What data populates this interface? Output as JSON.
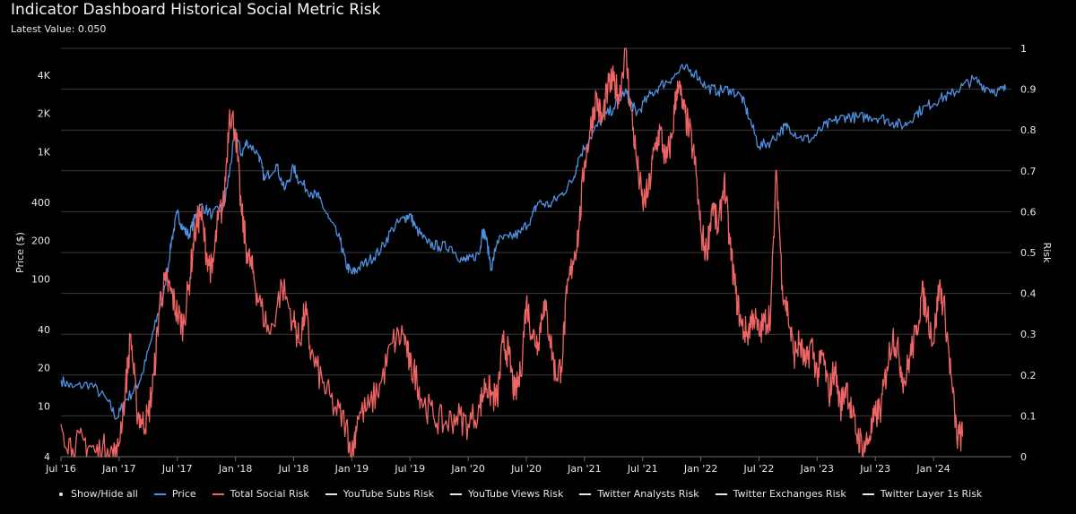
{
  "header": {
    "title": "Indicator Dashboard Historical Social Metric Risk",
    "latest_value_text": "Latest Value: 0.050"
  },
  "legend": {
    "show_hide_label": "Show/Hide all",
    "items": [
      {
        "label": "Price",
        "color": "#4f8fe0"
      },
      {
        "label": "Total Social Risk",
        "color": "#ef6565"
      },
      {
        "label": "YouTube Subs Risk",
        "color": "#e6e6e6"
      },
      {
        "label": "YouTube Views Risk",
        "color": "#e6e6e6"
      },
      {
        "label": "Twitter Analysts Risk",
        "color": "#e6e6e6"
      },
      {
        "label": "Twitter Exchanges Risk",
        "color": "#e6e6e6"
      },
      {
        "label": "Twitter Layer 1s Risk",
        "color": "#e6e6e6"
      }
    ]
  },
  "chart_data": {
    "type": "line",
    "title": "Indicator Dashboard Historical Social Metric Risk",
    "subtitle": "Latest Value: 0.050",
    "xlabel": "",
    "ylabel_left": "Price ($)",
    "ylabel_right": "Risk",
    "x_range": [
      2016.5,
      2024.67
    ],
    "y_left_scale": "log",
    "y_left_range": [
      4,
      6500
    ],
    "y_right_range": [
      0,
      1
    ],
    "grid": true,
    "legend_position": "bottom",
    "x_tick_labels": [
      {
        "t": 2016.5,
        "label": "Jul '16"
      },
      {
        "t": 2017.0,
        "label": "Jan '17"
      },
      {
        "t": 2017.5,
        "label": "Jul '17"
      },
      {
        "t": 2018.0,
        "label": "Jan '18"
      },
      {
        "t": 2018.5,
        "label": "Jul '18"
      },
      {
        "t": 2019.0,
        "label": "Jan '19"
      },
      {
        "t": 2019.5,
        "label": "Jul '19"
      },
      {
        "t": 2020.0,
        "label": "Jan '20"
      },
      {
        "t": 2020.5,
        "label": "Jul '20"
      },
      {
        "t": 2021.0,
        "label": "Jan '21"
      },
      {
        "t": 2021.5,
        "label": "Jul '21"
      },
      {
        "t": 2022.0,
        "label": "Jan '22"
      },
      {
        "t": 2022.5,
        "label": "Jul '22"
      },
      {
        "t": 2023.0,
        "label": "Jan '23"
      },
      {
        "t": 2023.5,
        "label": "Jul '23"
      },
      {
        "t": 2024.0,
        "label": "Jan '24"
      }
    ],
    "y_left_ticks": [
      {
        "v": 4,
        "label": "4"
      },
      {
        "v": 10,
        "label": "10"
      },
      {
        "v": 20,
        "label": "20"
      },
      {
        "v": 40,
        "label": "40"
      },
      {
        "v": 100,
        "label": "100"
      },
      {
        "v": 200,
        "label": "200"
      },
      {
        "v": 400,
        "label": "400"
      },
      {
        "v": 1000,
        "label": "1K"
      },
      {
        "v": 2000,
        "label": "2K"
      },
      {
        "v": 4000,
        "label": "4K"
      }
    ],
    "y_right_ticks": [
      {
        "v": 0,
        "label": "0"
      },
      {
        "v": 0.1,
        "label": "0.1"
      },
      {
        "v": 0.2,
        "label": "0.2"
      },
      {
        "v": 0.3,
        "label": "0.3"
      },
      {
        "v": 0.4,
        "label": "0.4"
      },
      {
        "v": 0.5,
        "label": "0.5"
      },
      {
        "v": 0.6,
        "label": "0.6"
      },
      {
        "v": 0.7,
        "label": "0.7"
      },
      {
        "v": 0.8,
        "label": "0.8"
      },
      {
        "v": 0.9,
        "label": "0.9"
      },
      {
        "v": 1,
        "label": "1"
      }
    ],
    "series": [
      {
        "name": "Price",
        "axis": "left",
        "color": "#4f8fe0",
        "points": [
          [
            2016.5,
            16
          ],
          [
            2016.6,
            14
          ],
          [
            2016.75,
            15
          ],
          [
            2016.9,
            11
          ],
          [
            2016.98,
            8
          ],
          [
            2017.05,
            11
          ],
          [
            2017.15,
            14
          ],
          [
            2017.2,
            18
          ],
          [
            2017.3,
            40
          ],
          [
            2017.4,
            90
          ],
          [
            2017.45,
            200
          ],
          [
            2017.5,
            330
          ],
          [
            2017.55,
            250
          ],
          [
            2017.6,
            220
          ],
          [
            2017.65,
            300
          ],
          [
            2017.7,
            380
          ],
          [
            2017.8,
            320
          ],
          [
            2017.9,
            370
          ],
          [
            2017.95,
            700
          ],
          [
            2018.0,
            1500
          ],
          [
            2018.05,
            950
          ],
          [
            2018.1,
            1200
          ],
          [
            2018.2,
            950
          ],
          [
            2018.25,
            600
          ],
          [
            2018.35,
            800
          ],
          [
            2018.42,
            500
          ],
          [
            2018.5,
            750
          ],
          [
            2018.55,
            580
          ],
          [
            2018.65,
            480
          ],
          [
            2018.72,
            430
          ],
          [
            2018.8,
            300
          ],
          [
            2018.9,
            200
          ],
          [
            2018.95,
            130
          ],
          [
            2019.0,
            110
          ],
          [
            2019.05,
            120
          ],
          [
            2019.15,
            140
          ],
          [
            2019.25,
            170
          ],
          [
            2019.35,
            250
          ],
          [
            2019.45,
            300
          ],
          [
            2019.5,
            320
          ],
          [
            2019.55,
            250
          ],
          [
            2019.65,
            190
          ],
          [
            2019.75,
            180
          ],
          [
            2019.85,
            180
          ],
          [
            2019.95,
            140
          ],
          [
            2020.0,
            140
          ],
          [
            2020.1,
            160
          ],
          [
            2020.12,
            240
          ],
          [
            2020.15,
            220
          ],
          [
            2020.2,
            120
          ],
          [
            2020.25,
            200
          ],
          [
            2020.35,
            210
          ],
          [
            2020.45,
            230
          ],
          [
            2020.55,
            310
          ],
          [
            2020.6,
            400
          ],
          [
            2020.7,
            380
          ],
          [
            2020.8,
            460
          ],
          [
            2020.9,
            600
          ],
          [
            2020.95,
            900
          ],
          [
            2021.05,
            1300
          ],
          [
            2021.15,
            1800
          ],
          [
            2021.25,
            2200
          ],
          [
            2021.35,
            3000
          ],
          [
            2021.4,
            2400
          ],
          [
            2021.45,
            2000
          ],
          [
            2021.55,
            2700
          ],
          [
            2021.65,
            3300
          ],
          [
            2021.75,
            3800
          ],
          [
            2021.85,
            4500
          ],
          [
            2021.95,
            4200
          ],
          [
            2022.05,
            3200
          ],
          [
            2022.15,
            3000
          ],
          [
            2022.25,
            3100
          ],
          [
            2022.35,
            2700
          ],
          [
            2022.42,
            1800
          ],
          [
            2022.5,
            1100
          ],
          [
            2022.6,
            1200
          ],
          [
            2022.7,
            1500
          ],
          [
            2022.75,
            1600
          ],
          [
            2022.85,
            1300
          ],
          [
            2022.95,
            1250
          ],
          [
            2023.05,
            1550
          ],
          [
            2023.15,
            1750
          ],
          [
            2023.25,
            1900
          ],
          [
            2023.35,
            1850
          ],
          [
            2023.45,
            1900
          ],
          [
            2023.55,
            1850
          ],
          [
            2023.65,
            1700
          ],
          [
            2023.75,
            1600
          ],
          [
            2023.85,
            2000
          ],
          [
            2023.95,
            2300
          ],
          [
            2024.05,
            2600
          ],
          [
            2024.15,
            2800
          ],
          [
            2024.25,
            3300
          ],
          [
            2024.35,
            3700
          ],
          [
            2024.45,
            3200
          ],
          [
            2024.55,
            3000
          ],
          [
            2024.62,
            3100
          ]
        ]
      },
      {
        "name": "Total Social Risk",
        "axis": "right",
        "color": "#ef6565",
        "points": [
          [
            2016.5,
            0.08
          ],
          [
            2016.6,
            0.02
          ],
          [
            2016.7,
            0.04
          ],
          [
            2016.8,
            0.01
          ],
          [
            2016.9,
            0.02
          ],
          [
            2016.98,
            0.0
          ],
          [
            2017.05,
            0.15
          ],
          [
            2017.1,
            0.3
          ],
          [
            2017.15,
            0.12
          ],
          [
            2017.2,
            0.08
          ],
          [
            2017.25,
            0.1
          ],
          [
            2017.3,
            0.2
          ],
          [
            2017.35,
            0.38
          ],
          [
            2017.4,
            0.43
          ],
          [
            2017.45,
            0.4
          ],
          [
            2017.5,
            0.35
          ],
          [
            2017.55,
            0.32
          ],
          [
            2017.6,
            0.42
          ],
          [
            2017.65,
            0.55
          ],
          [
            2017.7,
            0.6
          ],
          [
            2017.75,
            0.5
          ],
          [
            2017.8,
            0.45
          ],
          [
            2017.85,
            0.58
          ],
          [
            2017.9,
            0.62
          ],
          [
            2017.95,
            0.85
          ],
          [
            2018.0,
            0.8
          ],
          [
            2018.05,
            0.6
          ],
          [
            2018.1,
            0.5
          ],
          [
            2018.15,
            0.45
          ],
          [
            2018.2,
            0.38
          ],
          [
            2018.3,
            0.3
          ],
          [
            2018.4,
            0.42
          ],
          [
            2018.5,
            0.33
          ],
          [
            2018.55,
            0.28
          ],
          [
            2018.6,
            0.36
          ],
          [
            2018.65,
            0.25
          ],
          [
            2018.75,
            0.18
          ],
          [
            2018.85,
            0.12
          ],
          [
            2018.95,
            0.08
          ],
          [
            2019.0,
            0.0
          ],
          [
            2019.05,
            0.1
          ],
          [
            2019.15,
            0.12
          ],
          [
            2019.25,
            0.18
          ],
          [
            2019.35,
            0.28
          ],
          [
            2019.45,
            0.3
          ],
          [
            2019.5,
            0.22
          ],
          [
            2019.55,
            0.2
          ],
          [
            2019.6,
            0.14
          ],
          [
            2019.7,
            0.1
          ],
          [
            2019.8,
            0.08
          ],
          [
            2019.9,
            0.1
          ],
          [
            2020.0,
            0.08
          ],
          [
            2020.1,
            0.12
          ],
          [
            2020.15,
            0.18
          ],
          [
            2020.2,
            0.15
          ],
          [
            2020.25,
            0.14
          ],
          [
            2020.3,
            0.28
          ],
          [
            2020.35,
            0.25
          ],
          [
            2020.4,
            0.15
          ],
          [
            2020.45,
            0.2
          ],
          [
            2020.5,
            0.38
          ],
          [
            2020.55,
            0.3
          ],
          [
            2020.6,
            0.28
          ],
          [
            2020.65,
            0.38
          ],
          [
            2020.7,
            0.3
          ],
          [
            2020.75,
            0.2
          ],
          [
            2020.8,
            0.22
          ],
          [
            2020.85,
            0.4
          ],
          [
            2020.9,
            0.48
          ],
          [
            2020.95,
            0.55
          ],
          [
            2021.0,
            0.72
          ],
          [
            2021.05,
            0.8
          ],
          [
            2021.1,
            0.88
          ],
          [
            2021.15,
            0.82
          ],
          [
            2021.2,
            0.9
          ],
          [
            2021.25,
            0.92
          ],
          [
            2021.3,
            0.88
          ],
          [
            2021.35,
            1.0
          ],
          [
            2021.4,
            0.85
          ],
          [
            2021.45,
            0.72
          ],
          [
            2021.5,
            0.62
          ],
          [
            2021.55,
            0.65
          ],
          [
            2021.6,
            0.75
          ],
          [
            2021.65,
            0.8
          ],
          [
            2021.7,
            0.72
          ],
          [
            2021.75,
            0.78
          ],
          [
            2021.8,
            0.92
          ],
          [
            2021.85,
            0.85
          ],
          [
            2021.9,
            0.8
          ],
          [
            2021.95,
            0.72
          ],
          [
            2022.0,
            0.55
          ],
          [
            2022.05,
            0.5
          ],
          [
            2022.1,
            0.62
          ],
          [
            2022.15,
            0.55
          ],
          [
            2022.2,
            0.68
          ],
          [
            2022.25,
            0.52
          ],
          [
            2022.3,
            0.4
          ],
          [
            2022.35,
            0.32
          ],
          [
            2022.4,
            0.3
          ],
          [
            2022.45,
            0.35
          ],
          [
            2022.5,
            0.3
          ],
          [
            2022.55,
            0.33
          ],
          [
            2022.6,
            0.35
          ],
          [
            2022.65,
            0.7
          ],
          [
            2022.7,
            0.42
          ],
          [
            2022.75,
            0.35
          ],
          [
            2022.8,
            0.25
          ],
          [
            2022.85,
            0.28
          ],
          [
            2022.9,
            0.22
          ],
          [
            2022.95,
            0.28
          ],
          [
            2023.0,
            0.2
          ],
          [
            2023.05,
            0.25
          ],
          [
            2023.1,
            0.15
          ],
          [
            2023.15,
            0.22
          ],
          [
            2023.2,
            0.12
          ],
          [
            2023.25,
            0.18
          ],
          [
            2023.3,
            0.1
          ],
          [
            2023.35,
            0.05
          ],
          [
            2023.4,
            0.02
          ],
          [
            2023.45,
            0.05
          ],
          [
            2023.5,
            0.1
          ],
          [
            2023.55,
            0.12
          ],
          [
            2023.6,
            0.22
          ],
          [
            2023.65,
            0.3
          ],
          [
            2023.7,
            0.25
          ],
          [
            2023.75,
            0.18
          ],
          [
            2023.8,
            0.25
          ],
          [
            2023.85,
            0.3
          ],
          [
            2023.9,
            0.4
          ],
          [
            2023.95,
            0.35
          ],
          [
            2024.0,
            0.28
          ],
          [
            2024.05,
            0.42
          ],
          [
            2024.1,
            0.35
          ],
          [
            2024.15,
            0.2
          ],
          [
            2024.2,
            0.05
          ],
          [
            2024.25,
            0.05
          ]
        ]
      }
    ]
  }
}
